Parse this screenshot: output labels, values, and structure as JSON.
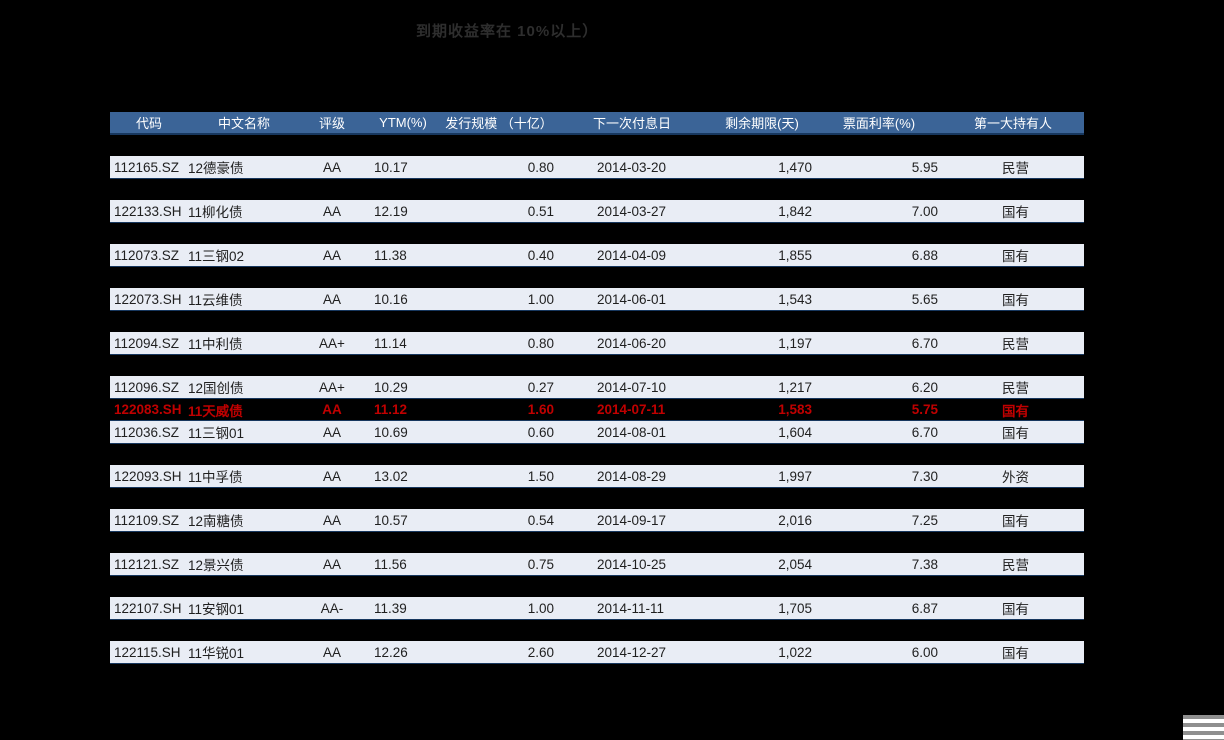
{
  "title": "到期收益率在 10%以上）",
  "colors": {
    "background": "#000000",
    "title_text": "#2e2e2e",
    "header_bg": "#3B6497",
    "header_text": "#FFFFFF",
    "row_bg": "#E9EDF5",
    "border_navy": "#17375E",
    "highlight_text": "#C00000",
    "stripe_gray": "#8F8F8F"
  },
  "table": {
    "headers": [
      "代码",
      "中文名称",
      "评级",
      "YTM(%)",
      "发行规模 （十亿）",
      "下一次付息日",
      "剩余期限(天)",
      "票面利率(%)",
      "第一大持有人"
    ],
    "rows": [
      {
        "code": "112165.SZ",
        "name": "12德豪债",
        "rating": "AA",
        "ytm": "10.17",
        "scale": "0.80",
        "next_pay": "2014-03-20",
        "remaining": "1,470",
        "coupon": "5.95",
        "holder": "民营",
        "highlight": false
      },
      {
        "code": "122133.SH",
        "name": "11柳化债",
        "rating": "AA",
        "ytm": "12.19",
        "scale": "0.51",
        "next_pay": "2014-03-27",
        "remaining": "1,842",
        "coupon": "7.00",
        "holder": "国有",
        "highlight": false
      },
      {
        "code": "112073.SZ",
        "name": "11三钢02",
        "rating": "AA",
        "ytm": "11.38",
        "scale": "0.40",
        "next_pay": "2014-04-09",
        "remaining": "1,855",
        "coupon": "6.88",
        "holder": "国有",
        "highlight": false
      },
      {
        "code": "122073.SH",
        "name": "11云维债",
        "rating": "AA",
        "ytm": "10.16",
        "scale": "1.00",
        "next_pay": "2014-06-01",
        "remaining": "1,543",
        "coupon": "5.65",
        "holder": "国有",
        "highlight": false
      },
      {
        "code": "112094.SZ",
        "name": "11中利债",
        "rating": "AA+",
        "ytm": "11.14",
        "scale": "0.80",
        "next_pay": "2014-06-20",
        "remaining": "1,197",
        "coupon": "6.70",
        "holder": "民营",
        "highlight": false
      },
      {
        "code": "112096.SZ",
        "name": "12国创债",
        "rating": "AA+",
        "ytm": "10.29",
        "scale": "0.27",
        "next_pay": "2014-07-10",
        "remaining": "1,217",
        "coupon": "6.20",
        "holder": "民营",
        "highlight": false
      },
      {
        "code": "122083.SH",
        "name": "11天威债",
        "rating": "AA",
        "ytm": "11.12",
        "scale": "1.60",
        "next_pay": "2014-07-11",
        "remaining": "1,583",
        "coupon": "5.75",
        "holder": "国有",
        "highlight": true
      },
      {
        "code": "112036.SZ",
        "name": "11三钢01",
        "rating": "AA",
        "ytm": "10.69",
        "scale": "0.60",
        "next_pay": "2014-08-01",
        "remaining": "1,604",
        "coupon": "6.70",
        "holder": "国有",
        "highlight": false
      },
      {
        "code": "122093.SH",
        "name": "11中孚债",
        "rating": "AA",
        "ytm": "13.02",
        "scale": "1.50",
        "next_pay": "2014-08-29",
        "remaining": "1,997",
        "coupon": "7.30",
        "holder": "外资",
        "highlight": false
      },
      {
        "code": "112109.SZ",
        "name": "12南糖债",
        "rating": "AA",
        "ytm": "10.57",
        "scale": "0.54",
        "next_pay": "2014-09-17",
        "remaining": "2,016",
        "coupon": "7.25",
        "holder": "国有",
        "highlight": false
      },
      {
        "code": "112121.SZ",
        "name": "12景兴债",
        "rating": "AA",
        "ytm": "11.56",
        "scale": "0.75",
        "next_pay": "2014-10-25",
        "remaining": "2,054",
        "coupon": "7.38",
        "holder": "民营",
        "highlight": false
      },
      {
        "code": "122107.SH",
        "name": "11安钢01",
        "rating": "AA-",
        "ytm": "11.39",
        "scale": "1.00",
        "next_pay": "2014-11-11",
        "remaining": "1,705",
        "coupon": "6.87",
        "holder": "国有",
        "highlight": false
      },
      {
        "code": "122115.SH",
        "name": "11华锐01",
        "rating": "AA",
        "ytm": "12.26",
        "scale": "2.60",
        "next_pay": "2014-12-27",
        "remaining": "1,022",
        "coupon": "6.00",
        "holder": "国有",
        "highlight": false
      }
    ]
  }
}
